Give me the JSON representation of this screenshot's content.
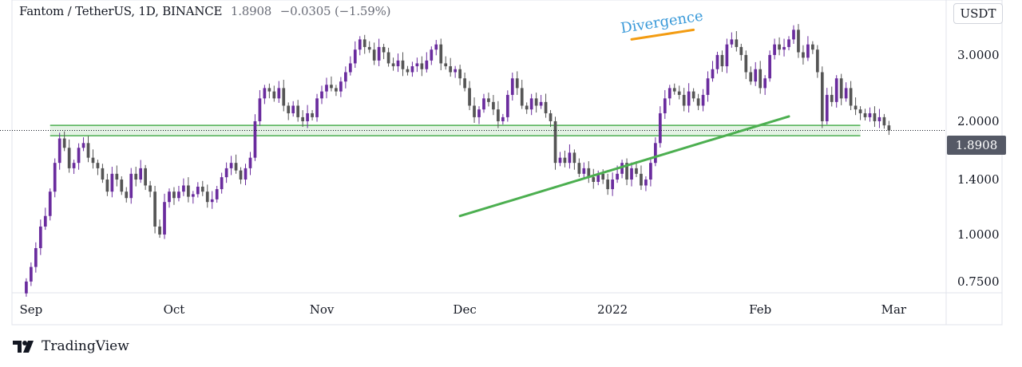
{
  "header": {
    "symbol": "Fantom / TetherUS, 1D, BINANCE",
    "price": "1.8908",
    "change": "−0.0305 (−1.59%)"
  },
  "currency_label": "USDT",
  "last_price_label": "1.8908",
  "footer": {
    "brand": "TradingView"
  },
  "colors": {
    "up": "#6a2c9e",
    "down": "#555555",
    "support_zone": "#4caf50",
    "trendline": "#4caf50",
    "divergence_line": "#f39c12",
    "divergence_text": "#3a9ad9"
  },
  "chart_data": {
    "type": "candlestick",
    "title": "Fantom / TetherUS, 1D, BINANCE",
    "y_scale": "log",
    "ylim": [
      0.7,
      4.2
    ],
    "y_ticks": [
      "3.0000",
      "2.0000",
      "1.4000",
      "1.0000",
      "0.7500"
    ],
    "x_ticks": [
      "Sep",
      "Oct",
      "Nov",
      "Dec",
      "2022",
      "Feb",
      "Mar"
    ],
    "x_tick_dates": [
      "2021-09-01",
      "2021-10-01",
      "2021-11-01",
      "2021-12-01",
      "2022-01-01",
      "2022-02-01",
      "2022-03-01"
    ],
    "x_range": [
      "2021-08-28",
      "2022-03-12"
    ],
    "last_price": 1.8908,
    "support_zone": [
      1.83,
      1.95
    ],
    "trendline": {
      "from": [
        "2021-11-30",
        1.12
      ],
      "to": [
        "2022-02-07",
        2.06
      ]
    },
    "annotations": [
      {
        "text": "Divergence",
        "line_from": [
          "2022-01-05",
          3.3
        ],
        "line_to": [
          "2022-01-18",
          3.5
        ]
      }
    ],
    "closes": [
      0.75,
      0.82,
      0.92,
      1.05,
      1.12,
      1.3,
      1.55,
      1.8,
      1.7,
      1.5,
      1.55,
      1.7,
      1.75,
      1.6,
      1.55,
      1.5,
      1.4,
      1.3,
      1.45,
      1.4,
      1.3,
      1.25,
      1.45,
      1.4,
      1.5,
      1.35,
      1.3,
      1.05,
      1.0,
      1.22,
      1.3,
      1.25,
      1.3,
      1.35,
      1.26,
      1.28,
      1.34,
      1.3,
      1.22,
      1.24,
      1.32,
      1.42,
      1.5,
      1.55,
      1.48,
      1.4,
      1.5,
      1.6,
      2.0,
      2.3,
      2.45,
      2.4,
      2.3,
      2.45,
      2.2,
      2.1,
      2.2,
      2.05,
      2.0,
      2.1,
      2.05,
      2.3,
      2.4,
      2.5,
      2.45,
      2.4,
      2.55,
      2.7,
      2.85,
      3.1,
      3.3,
      3.15,
      3.1,
      2.9,
      3.15,
      3.05,
      2.85,
      2.8,
      2.9,
      2.75,
      2.7,
      2.8,
      2.85,
      2.75,
      2.9,
      3.1,
      3.2,
      2.85,
      2.8,
      2.7,
      2.75,
      2.6,
      2.45,
      2.2,
      2.05,
      2.15,
      2.3,
      2.25,
      2.15,
      2.0,
      2.05,
      2.35,
      2.6,
      2.45,
      2.2,
      2.15,
      2.3,
      2.2,
      2.25,
      2.1,
      2.0,
      1.55,
      1.6,
      1.55,
      1.65,
      1.55,
      1.45,
      1.5,
      1.42,
      1.38,
      1.45,
      1.4,
      1.32,
      1.4,
      1.45,
      1.55,
      1.4,
      1.5,
      1.45,
      1.35,
      1.4,
      1.55,
      1.75,
      2.1,
      2.3,
      2.45,
      2.4,
      2.35,
      2.2,
      2.4,
      2.3,
      2.2,
      2.35,
      2.6,
      2.75,
      3.0,
      2.8,
      3.2,
      3.3,
      3.15,
      3.0,
      2.7,
      2.55,
      2.75,
      2.45,
      2.6,
      3.0,
      3.2,
      3.1,
      3.15,
      3.3,
      3.5,
      3.05,
      2.95,
      3.2,
      3.1,
      2.7,
      2.0,
      2.35,
      2.25,
      2.6,
      2.3,
      2.45,
      2.2,
      2.15,
      2.1,
      2.05,
      2.1,
      2.0,
      2.05,
      1.95,
      1.8908
    ]
  }
}
